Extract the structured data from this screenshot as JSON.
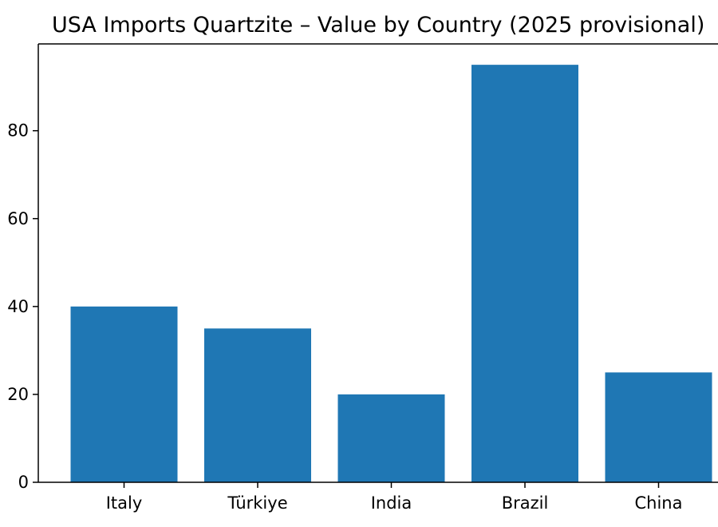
{
  "chart_data": {
    "type": "bar",
    "title": "USA Imports Quartzite – Value by Country (2025 provisional)",
    "categories": [
      "Italy",
      "Türkiye",
      "India",
      "Brazil",
      "China"
    ],
    "values": [
      40,
      35,
      20,
      95,
      25
    ],
    "xlabel": "",
    "ylabel": "",
    "ylim": [
      0,
      99.75
    ],
    "yticks": [
      0,
      20,
      40,
      60,
      80
    ],
    "ytick_labels": [
      "0",
      "20",
      "40",
      "60",
      "80"
    ],
    "grid": false,
    "bar_color": "#1f77b4"
  }
}
